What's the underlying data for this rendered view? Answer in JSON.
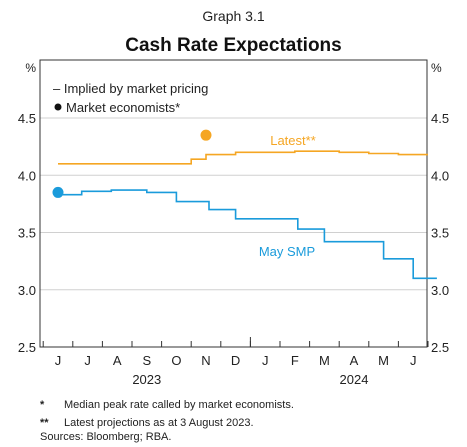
{
  "graph_number": "Graph 3.1",
  "title": "Cash Rate Expectations",
  "chart_data": {
    "type": "line",
    "title": "Cash Rate Expectations",
    "y_unit": "%",
    "ylim": [
      2.5,
      4.5
    ],
    "yticks": [
      "2.5",
      "3.0",
      "3.5",
      "4.0",
      "4.5"
    ],
    "ytick_values": [
      2.5,
      3.0,
      3.5,
      4.0,
      4.5
    ],
    "months": [
      "J",
      "J",
      "A",
      "S",
      "O",
      "N",
      "D",
      "J",
      "F",
      "M",
      "A",
      "M",
      "J"
    ],
    "years": [
      {
        "label": "2023",
        "center_month_index": 3
      },
      {
        "label": "2024",
        "center_month_index": 10
      }
    ],
    "grid": true,
    "legend": [
      {
        "marker": "–",
        "label": "Implied by market pricing"
      },
      {
        "marker": "●",
        "label": "Market economists*"
      }
    ],
    "series": [
      {
        "name": "Latest**",
        "color": "#F5A623",
        "step_points": [
          [
            0.0,
            4.1
          ],
          [
            4.5,
            4.1
          ],
          [
            4.5,
            4.14
          ],
          [
            5.0,
            4.14
          ],
          [
            5.0,
            4.18
          ],
          [
            6.0,
            4.18
          ],
          [
            6.0,
            4.2
          ],
          [
            8.0,
            4.2
          ],
          [
            8.0,
            4.21
          ],
          [
            9.5,
            4.21
          ],
          [
            9.5,
            4.2
          ],
          [
            10.5,
            4.2
          ],
          [
            10.5,
            4.19
          ],
          [
            11.5,
            4.19
          ],
          [
            11.5,
            4.18
          ],
          [
            12.5,
            4.18
          ]
        ],
        "dot": {
          "x": 5.0,
          "y": 4.35
        }
      },
      {
        "name": "May SMP",
        "color": "#1A9BDB",
        "step_points": [
          [
            0.0,
            3.83
          ],
          [
            0.8,
            3.83
          ],
          [
            0.8,
            3.86
          ],
          [
            1.8,
            3.86
          ],
          [
            1.8,
            3.87
          ],
          [
            3.0,
            3.87
          ],
          [
            3.0,
            3.85
          ],
          [
            4.0,
            3.85
          ],
          [
            4.0,
            3.77
          ],
          [
            5.1,
            3.77
          ],
          [
            5.1,
            3.7
          ],
          [
            6.0,
            3.7
          ],
          [
            6.0,
            3.62
          ],
          [
            8.1,
            3.62
          ],
          [
            8.1,
            3.53
          ],
          [
            9.0,
            3.53
          ],
          [
            9.0,
            3.42
          ],
          [
            11.0,
            3.42
          ],
          [
            11.0,
            3.27
          ],
          [
            12.0,
            3.27
          ],
          [
            12.0,
            3.1
          ],
          [
            12.8,
            3.1
          ]
        ],
        "dot": {
          "x": 0.0,
          "y": 3.85
        }
      }
    ]
  },
  "notes": [
    {
      "mark": "*",
      "text": "Median peak rate called by market economists."
    },
    {
      "mark": "**",
      "text": "Latest projections as at 3 August 2023."
    }
  ],
  "sources": "Sources: Bloomberg; RBA."
}
